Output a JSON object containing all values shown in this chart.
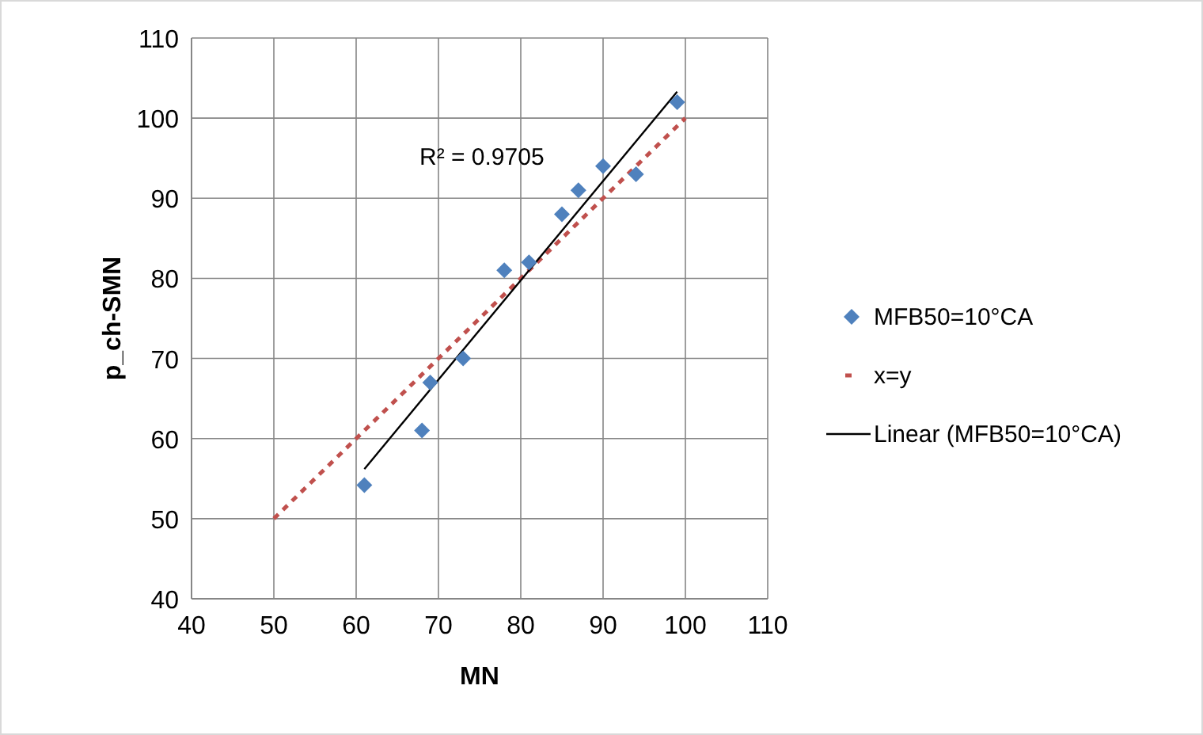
{
  "chart_data": {
    "type": "scatter",
    "xlabel": "MN",
    "ylabel": "p_ch-SMN",
    "xlim": [
      40,
      110
    ],
    "ylim": [
      40,
      110
    ],
    "xticks": [
      40,
      50,
      60,
      70,
      80,
      90,
      100,
      110
    ],
    "yticks": [
      40,
      50,
      60,
      70,
      80,
      90,
      100,
      110
    ],
    "grid": true,
    "legend": "right",
    "annotations": [
      "R² = 0.9705"
    ],
    "series": [
      {
        "name": "MFB50=10°CA",
        "marker": "diamond",
        "color": "#4f81bd",
        "x": [
          61,
          68,
          69,
          73,
          78,
          81,
          85,
          87,
          90,
          94,
          99
        ],
        "values": [
          54.2,
          61,
          67,
          70,
          81,
          82,
          88,
          91,
          94,
          93,
          102
        ]
      },
      {
        "name": "x=y",
        "type": "line",
        "line_style": "dashed",
        "color": "#c0504d",
        "x": [
          50,
          100
        ],
        "values": [
          50,
          100
        ]
      },
      {
        "name": "Linear (MFB50=10°CA)",
        "type": "line",
        "line_style": "solid",
        "color": "#000000",
        "x": [
          61,
          99
        ],
        "values": [
          56.2,
          103.3
        ]
      }
    ]
  }
}
